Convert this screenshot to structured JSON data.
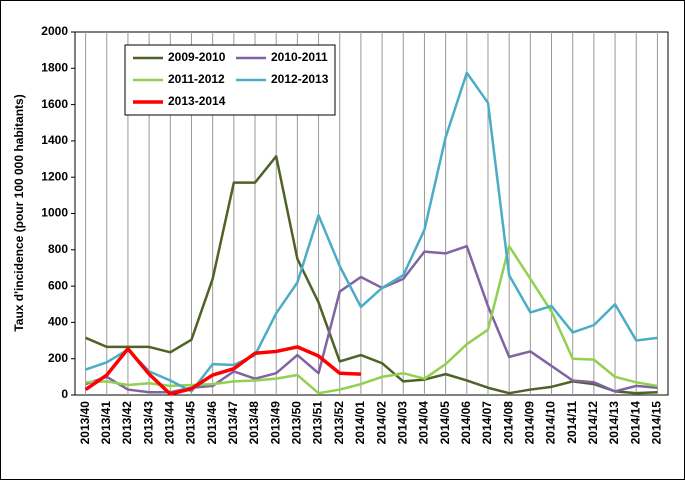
{
  "chart_data": {
    "type": "line",
    "y_label": "Taux d'incidence (pour 100 000 habitants)",
    "categories": [
      "2013/40",
      "2013/41",
      "2013/42",
      "2013/43",
      "2013/44",
      "2013/45",
      "2013/46",
      "2013/47",
      "2013/48",
      "2013/49",
      "2013/50",
      "2013/51",
      "2013/52",
      "2014/01",
      "2014/02",
      "2014/03",
      "2014/04",
      "2014/05",
      "2014/06",
      "2014/07",
      "2014/08",
      "2014/09",
      "2014/10",
      "2014/11",
      "2014/12",
      "2014/13",
      "2014/14",
      "2014/15"
    ],
    "series": [
      {
        "name": "2009-2010",
        "color": "#4f6228",
        "values": [
          315,
          265,
          265,
          265,
          235,
          305,
          640,
          1170,
          1170,
          1315,
          750,
          510,
          185,
          220,
          175,
          75,
          85,
          115,
          80,
          40,
          10,
          30,
          45,
          75,
          60,
          20,
          10,
          15
        ]
      },
      {
        "name": "2010-2011",
        "color": "#8064a2",
        "values": [
          60,
          100,
          30,
          15,
          15,
          40,
          50,
          130,
          90,
          120,
          220,
          120,
          570,
          650,
          590,
          640,
          790,
          780,
          820,
          490,
          210,
          240,
          160,
          80,
          70,
          20,
          50,
          40
        ]
      },
      {
        "name": "2011-2012",
        "color": "#92d050",
        "values": [
          70,
          75,
          55,
          65,
          50,
          55,
          60,
          75,
          80,
          90,
          110,
          10,
          30,
          60,
          100,
          120,
          90,
          170,
          280,
          360,
          820,
          640,
          460,
          200,
          195,
          100,
          70,
          50
        ]
      },
      {
        "name": "2012-2013",
        "color": "#4bacc6",
        "values": [
          140,
          180,
          250,
          130,
          80,
          20,
          170,
          165,
          220,
          450,
          620,
          990,
          710,
          485,
          590,
          660,
          910,
          1420,
          1775,
          1610,
          660,
          455,
          490,
          345,
          385,
          500,
          300,
          315
        ]
      },
      {
        "name": "2013-2014",
        "color": "#ff0000",
        "values": [
          30,
          110,
          255,
          115,
          5,
          35,
          110,
          145,
          230,
          240,
          265,
          215,
          120,
          115,
          null,
          null,
          null,
          null,
          null,
          null,
          null,
          null,
          null,
          null,
          null,
          null,
          null,
          null
        ]
      }
    ],
    "ylim": [
      0,
      2000
    ],
    "yticks": [
      0,
      200,
      400,
      600,
      800,
      1000,
      1200,
      1400,
      1600,
      1800,
      2000
    ],
    "grid": "x"
  }
}
